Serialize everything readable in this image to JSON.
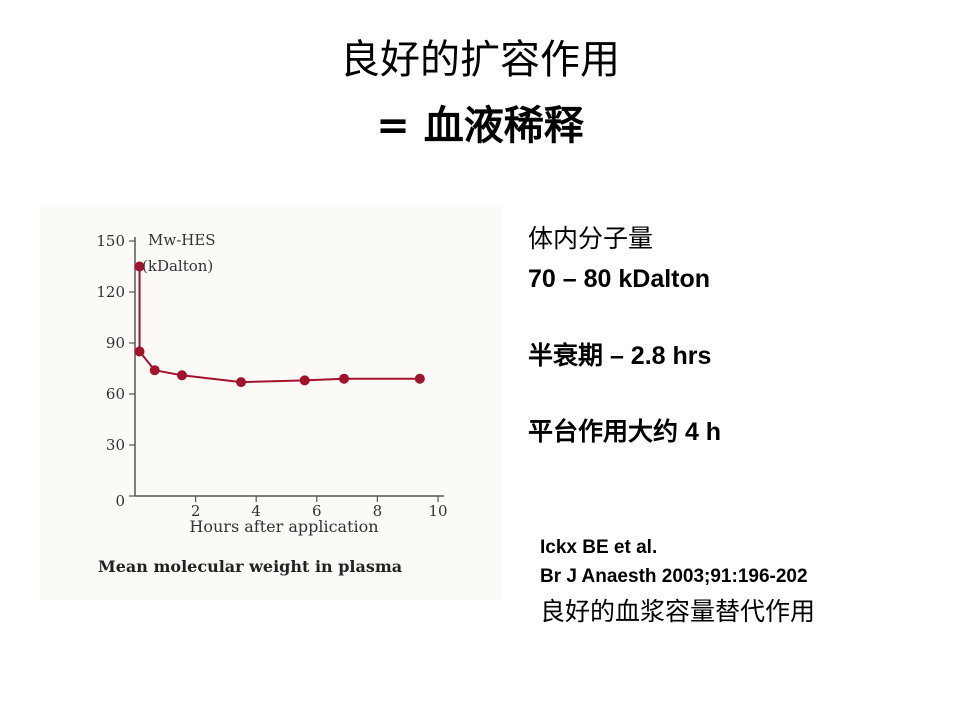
{
  "slide": {
    "title_line1": "良好的扩容作用",
    "title_line2": "= 血液稀释",
    "info": {
      "line1": "体内分子量",
      "line2": "70 – 80 kDalton",
      "line3": "半衰期 – 2.8 hrs",
      "line4": "平台作用大约 4 h"
    },
    "reference": {
      "line1": "Ickx BE et al.",
      "line2": "Br J Anaesth 2003;91:196-202",
      "line3": "良好的血浆容量替代作用"
    }
  },
  "chart_data": {
    "type": "line",
    "caption": "Mean molecular weight in plasma",
    "xlabel": "Hours after application",
    "series_label_line1": "Mw-HES",
    "series_label_line2": "(kDalton)",
    "xlim": [
      0,
      10
    ],
    "ylim": [
      0,
      150
    ],
    "xticks": [
      2,
      4,
      6,
      8,
      10
    ],
    "yticks": [
      0,
      30,
      60,
      90,
      120,
      150
    ],
    "color": "#a3122a",
    "points": [
      {
        "x": 0.15,
        "y": 135
      },
      {
        "x": 0.15,
        "y": 85
      },
      {
        "x": 0.65,
        "y": 74
      },
      {
        "x": 1.55,
        "y": 71
      },
      {
        "x": 3.5,
        "y": 67
      },
      {
        "x": 5.6,
        "y": 68
      },
      {
        "x": 6.9,
        "y": 69
      },
      {
        "x": 9.4,
        "y": 69
      }
    ]
  }
}
